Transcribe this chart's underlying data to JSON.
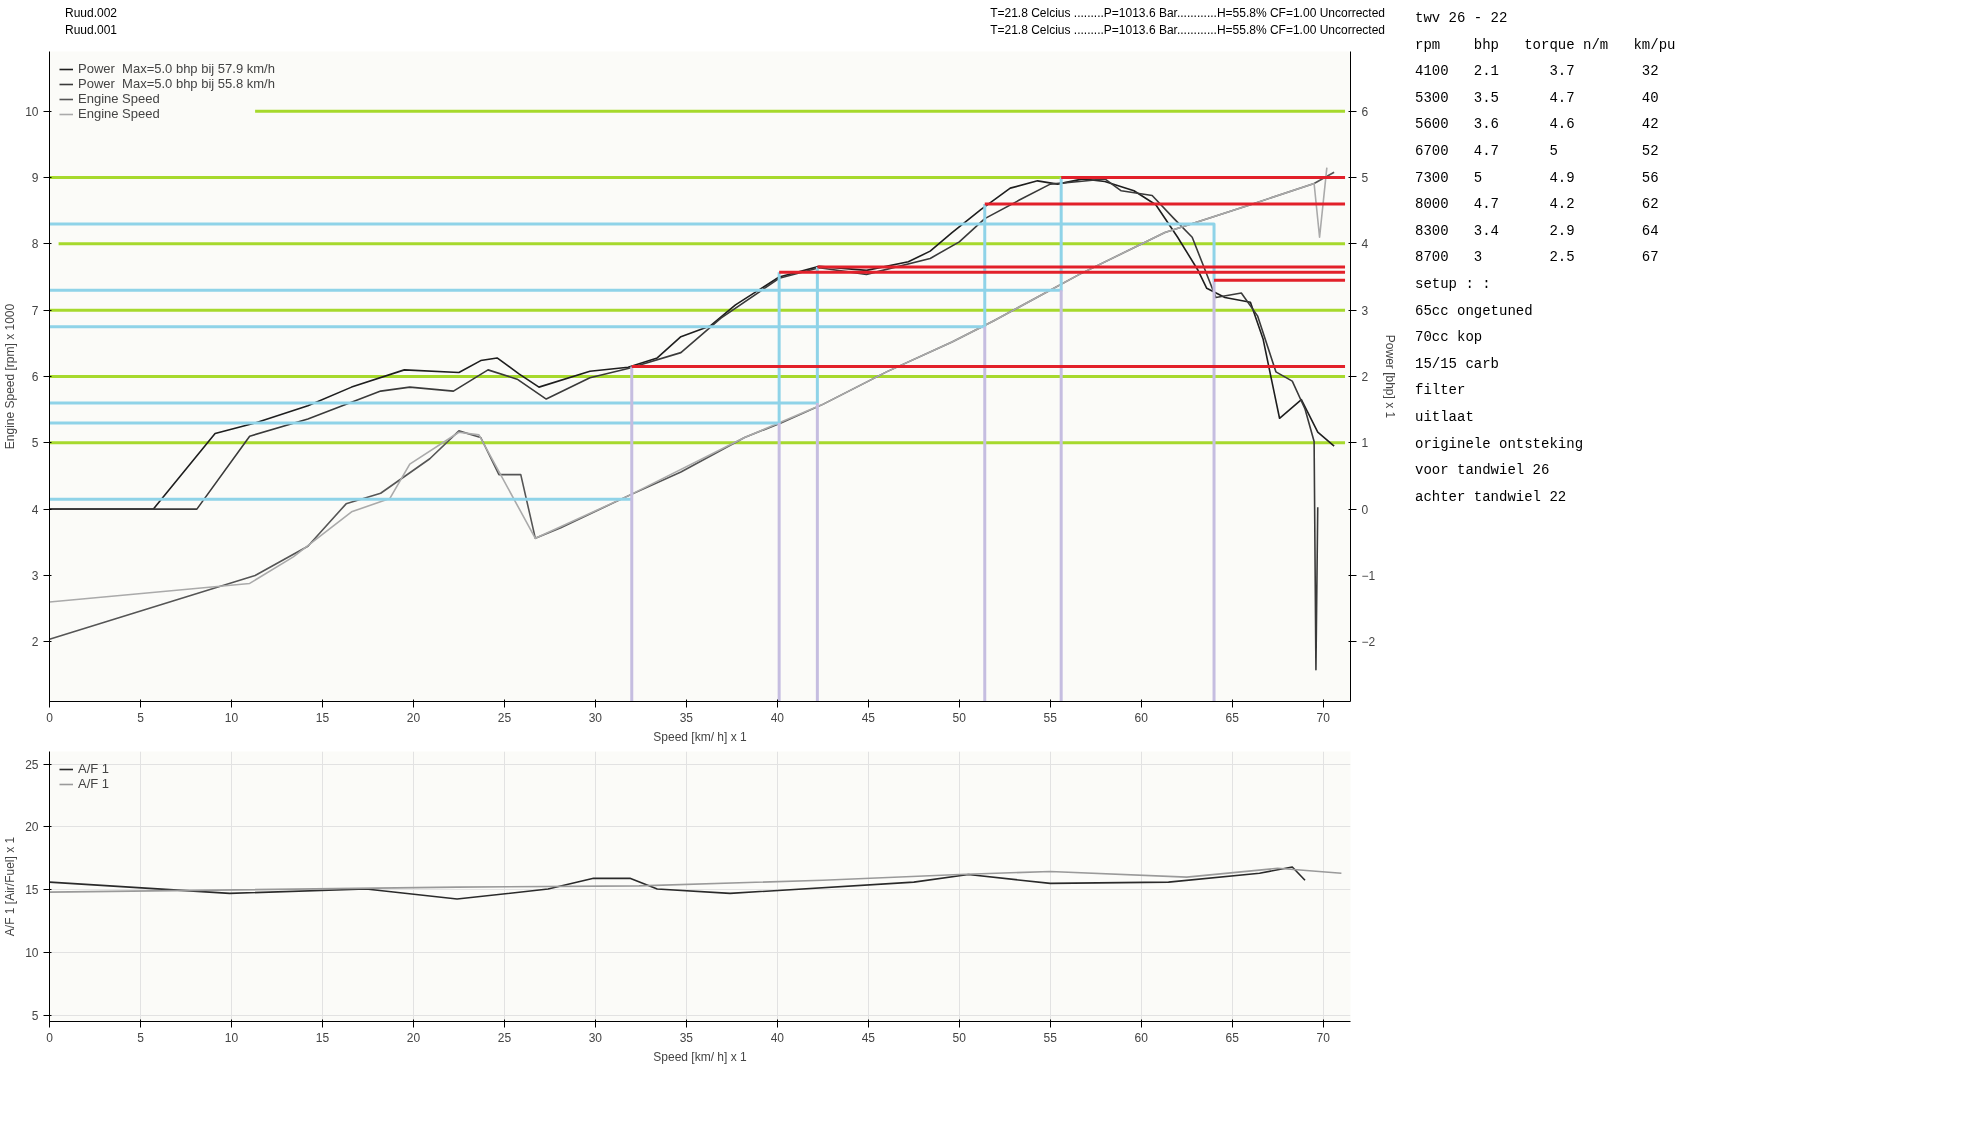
{
  "chart_data": [
    {
      "type": "line",
      "xlabel": "Speed [km/ h] x 1",
      "ylabel": "Engine Speed [rpm] x 1000",
      "y2label": "Power [bhp] x 1",
      "xlim": [
        0,
        71.5
      ],
      "xticks": [
        0,
        5,
        10,
        15,
        20,
        25,
        30,
        35,
        40,
        45,
        50,
        55,
        60,
        65,
        70
      ],
      "ylim": [
        1.1,
        10.9
      ],
      "yticks": [
        2,
        3,
        4,
        5,
        6,
        7,
        8,
        9,
        10
      ],
      "y2lim": [
        -2.9,
        6.9
      ],
      "y2ticks": [
        -2,
        -1,
        0,
        1,
        2,
        3,
        4,
        5,
        6
      ],
      "grid": false,
      "legend": "top left",
      "annotations": [
        "Ruud.002",
        "T=21.8 Celcius .........P=1013.6 Bar............H=55.8% CF=1.00 Uncorrected",
        "Ruud.001",
        "T=21.8 Celcius .........P=1013.6 Bar............H=55.8% CF=1.00 Uncorrected",
        "twv 26 - 22",
        "rpm    bhp   torque n/m   km/pu",
        "4100   2.1      3.7        32",
        "5300   3.5      4.7        40",
        "5600   3.6      4.6        42",
        "6700   4.7      5          52",
        "7300   5        4.9        56",
        "8000   4.7      4.2        62",
        "8300   3.4      2.9        64",
        "8700   3        2.5        67",
        "setup : :",
        "65cc ongetuned",
        "70cc kop",
        "15/15 carb",
        "filter",
        "uitlaat",
        "originele ontsteking",
        "voor tandwiel 26",
        "achter tandwiel 22"
      ],
      "series": [
        {
          "color": "#a6d92c",
          "axis": "y2",
          "x": [
            0,
            71.2
          ],
          "values": [
            1,
            1
          ]
        },
        {
          "color": "#a6d92c",
          "axis": "y2",
          "x": [
            0,
            71.2
          ],
          "values": [
            2,
            2
          ]
        },
        {
          "color": "#a6d92c",
          "axis": "y2",
          "x": [
            0,
            71.2
          ],
          "values": [
            3,
            3
          ]
        },
        {
          "color": "#a6d92c",
          "axis": "y2",
          "x": [
            0.5,
            71.2
          ],
          "values": [
            4,
            4
          ]
        },
        {
          "color": "#a6d92c",
          "axis": "y2",
          "x": [
            0,
            71.2
          ],
          "values": [
            5,
            5
          ]
        },
        {
          "color": "#a6d92c",
          "axis": "y2",
          "x": [
            11.3,
            71.2
          ],
          "values": [
            6,
            6
          ]
        },
        {
          "name": "Power  Max=5.0 bhp bij 57.9 km/h",
          "color": "#1e1e1e",
          "axis": "y2",
          "x": [
            0,
            5.7,
            9.1,
            11.3,
            14.2,
            16.6,
            19.5,
            22.5,
            23.7,
            24.6,
            25.8,
            26.9,
            29.7,
            31.8,
            33.4,
            34.7,
            36.3,
            37.7,
            40.1,
            42.3,
            44.9,
            47.2,
            48.4,
            49.6,
            51.2,
            52.8,
            54.3,
            55.4,
            56.8,
            58,
            59.6,
            60.8,
            62,
            63.1,
            63.6,
            64.6,
            66,
            66.7,
            67.6,
            68.8,
            69.7,
            70.6
          ],
          "values": [
            0,
            0,
            1.14,
            1.3,
            1.56,
            1.84,
            2.1,
            2.06,
            2.24,
            2.28,
            2.04,
            1.84,
            2.08,
            2.14,
            2.28,
            2.6,
            2.76,
            3.08,
            3.5,
            3.66,
            3.6,
            3.73,
            3.89,
            4.17,
            4.52,
            4.84,
            4.95,
            4.9,
            4.98,
            4.94,
            4.8,
            4.59,
            4.1,
            3.61,
            3.33,
            3.19,
            3.12,
            2.56,
            1.37,
            1.65,
            1.16,
            0.95
          ]
        },
        {
          "name": "Power  Max=5.0 bhp bij 55.8 km/h",
          "color": "#3a3a3a",
          "axis": "y2",
          "x": [
            0,
            8.1,
            11,
            14.2,
            18.2,
            19.8,
            22.2,
            24.1,
            25.7,
            27.3,
            29.7,
            31.8,
            34.7,
            36.9,
            40.1,
            42.3,
            44.9,
            48.4,
            50,
            51.4,
            53.3,
            55,
            56.6,
            58,
            58.9,
            60.6,
            61.8,
            62.8,
            63.4,
            64.1,
            65.5,
            66.4,
            67.4,
            68.3,
            69,
            69.5,
            69.6,
            69.7
          ],
          "values": [
            0,
            0,
            1.1,
            1.36,
            1.78,
            1.84,
            1.78,
            2.1,
            1.96,
            1.66,
            1.98,
            2.12,
            2.36,
            2.88,
            3.48,
            3.64,
            3.54,
            3.78,
            4.03,
            4.38,
            4.66,
            4.9,
            4.94,
            4.98,
            4.8,
            4.73,
            4.38,
            4.1,
            3.68,
            3.19,
            3.26,
            2.91,
            2.07,
            1.93,
            1.51,
            1.02,
            -2.42,
            0.03
          ]
        },
        {
          "name": "Engine Speed",
          "color": "#555555",
          "x": [
            0,
            11.3,
            14.2,
            16.3,
            18.2,
            20.9,
            22.5,
            23.7,
            24.7,
            25.9,
            26.7,
            28.1,
            31.8,
            34.7,
            38.2,
            40.2,
            42.5,
            46,
            49.6,
            51.9,
            56.6,
            61.3,
            66,
            69.5,
            70.6
          ],
          "values": [
            2.04,
            3.0,
            3.44,
            4.08,
            4.24,
            4.76,
            5.18,
            5.08,
            4.52,
            4.52,
            3.56,
            3.72,
            4.2,
            4.56,
            5.08,
            5.3,
            5.58,
            6.07,
            6.52,
            6.84,
            7.54,
            8.17,
            8.59,
            8.91,
            9.08
          ]
        },
        {
          "name": "Engine Speed",
          "color": "#aaaaaa",
          "x": [
            0,
            11,
            13.4,
            16.6,
            18.7,
            19.8,
            22.5,
            23.6,
            26.7,
            31.8,
            38.2,
            42.5,
            46,
            49.6,
            51.9,
            56.6,
            61.3,
            66,
            69.5,
            69.8,
            70.2
          ],
          "values": [
            2.6,
            2.88,
            3.28,
            3.96,
            4.16,
            4.68,
            5.16,
            5.12,
            3.56,
            4.2,
            5.08,
            5.58,
            6.07,
            6.52,
            6.84,
            7.54,
            8.17,
            8.59,
            8.91,
            8.1,
            9.15
          ]
        },
        {
          "color": "#8fd3e8",
          "x": [
            0,
            32
          ],
          "values": [
            4.15,
            4.15
          ]
        },
        {
          "color": "#8fd3e8",
          "x": [
            0,
            40.1,
            40.1
          ],
          "values": [
            5.3,
            5.3,
            7.57
          ]
        },
        {
          "color": "#8fd3e8",
          "x": [
            0,
            42.2,
            42.2
          ],
          "values": [
            5.6,
            5.6,
            7.65
          ]
        },
        {
          "color": "#8fd3e8",
          "x": [
            0,
            51.4,
            51.4
          ],
          "values": [
            6.75,
            6.75,
            8.6
          ]
        },
        {
          "color": "#8fd3e8",
          "x": [
            0,
            55.6,
            55.6
          ],
          "values": [
            7.3,
            7.3,
            9.0
          ]
        },
        {
          "color": "#8fd3e8",
          "x": [
            0,
            64,
            64
          ],
          "values": [
            8.3,
            8.3,
            7.45
          ]
        },
        {
          "color": "#c5bde0",
          "x": [
            32,
            32
          ],
          "values": [
            1.1,
            6.15
          ]
        },
        {
          "color": "#c5bde0",
          "x": [
            40.1,
            40.1
          ],
          "values": [
            1.1,
            5.3
          ]
        },
        {
          "color": "#c5bde0",
          "x": [
            42.2,
            42.2
          ],
          "values": [
            1.1,
            5.6
          ]
        },
        {
          "color": "#c5bde0",
          "x": [
            51.4,
            51.4
          ],
          "values": [
            1.1,
            6.75
          ]
        },
        {
          "color": "#c5bde0",
          "x": [
            55.6,
            55.6
          ],
          "values": [
            1.1,
            7.3
          ]
        },
        {
          "color": "#c5bde0",
          "x": [
            64,
            64
          ],
          "values": [
            1.1,
            7.45
          ]
        },
        {
          "color": "#e2202a",
          "axis": "y2",
          "x": [
            32,
            71.2
          ],
          "values": [
            2.15,
            2.15
          ]
        },
        {
          "color": "#e2202a",
          "axis": "y2",
          "x": [
            40.1,
            71.2
          ],
          "values": [
            3.57,
            3.57
          ]
        },
        {
          "color": "#e2202a",
          "axis": "y2",
          "x": [
            42.2,
            71.2
          ],
          "values": [
            3.65,
            3.65
          ]
        },
        {
          "color": "#e2202a",
          "axis": "y2",
          "x": [
            51.4,
            71.2
          ],
          "values": [
            4.6,
            4.6
          ]
        },
        {
          "color": "#e2202a",
          "axis": "y2",
          "x": [
            55.6,
            71.2
          ],
          "values": [
            5.0,
            5.0
          ]
        },
        {
          "color": "#e2202a",
          "axis": "y2",
          "x": [
            64,
            71.2
          ],
          "values": [
            3.45,
            3.45
          ]
        }
      ]
    },
    {
      "type": "line",
      "xlabel": "Speed [km/ h] x 1",
      "ylabel": "A/F 1 [Air/Fuel] x 1",
      "xlim": [
        0,
        71.5
      ],
      "xticks": [
        0,
        5,
        10,
        15,
        20,
        25,
        30,
        35,
        40,
        45,
        50,
        55,
        60,
        65,
        70
      ],
      "ylim": [
        4.5,
        26
      ],
      "yticks": [
        5,
        10,
        15,
        20,
        25
      ],
      "grid": true,
      "legend": "top left",
      "series": [
        {
          "name": "A/F 1",
          "color": "#2a2a2a",
          "x": [
            0,
            9.9,
            17.4,
            22.4,
            27.4,
            29.9,
            31.9,
            33.4,
            37.4,
            47.5,
            50.5,
            55,
            61.5,
            66.5,
            68.3,
            69
          ],
          "values": [
            15.6,
            14.7,
            15.05,
            14.25,
            15.05,
            15.9,
            15.9,
            15.05,
            14.7,
            15.6,
            16.2,
            15.5,
            15.6,
            16.3,
            16.8,
            15.75
          ]
        },
        {
          "name": "A/F 1",
          "color": "#9a9a9a",
          "x": [
            0,
            22.4,
            32.4,
            42.5,
            50,
            55,
            62.5,
            67.5,
            71
          ],
          "values": [
            14.8,
            15.2,
            15.3,
            15.75,
            16.2,
            16.45,
            16,
            16.7,
            16.3
          ]
        }
      ]
    }
  ]
}
